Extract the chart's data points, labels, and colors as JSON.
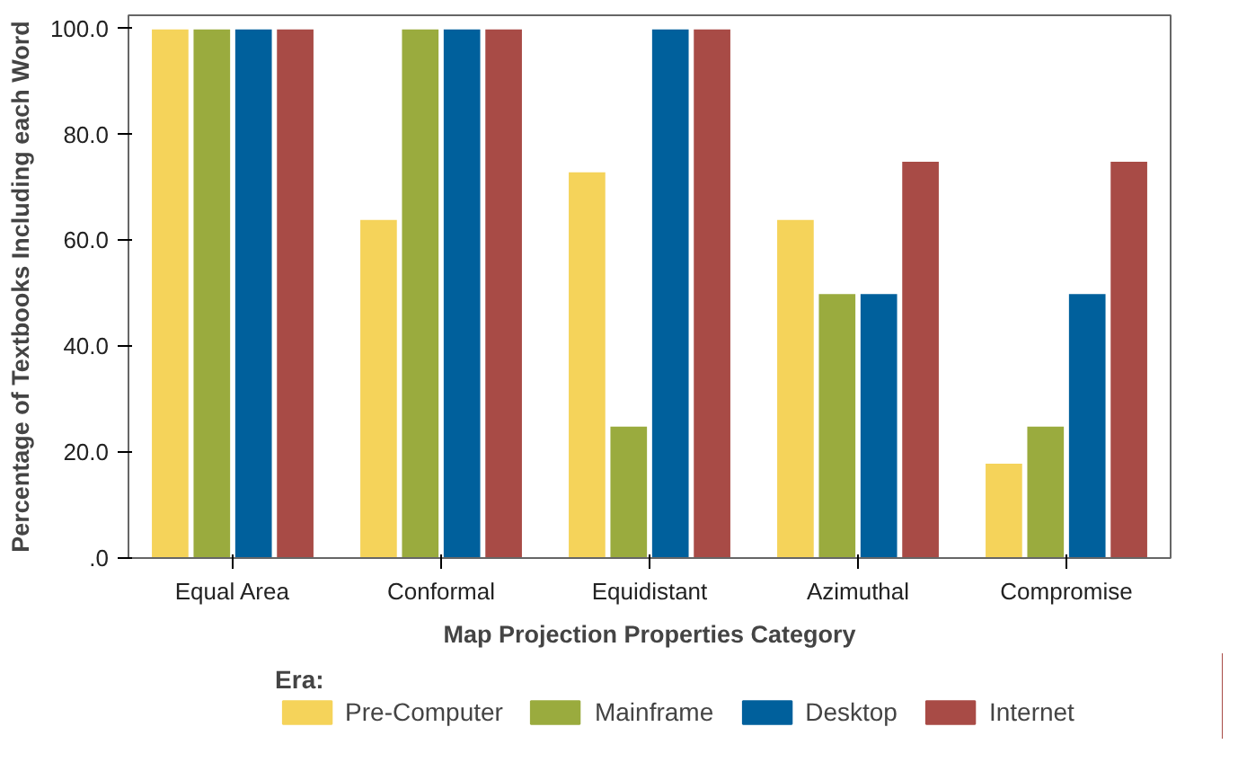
{
  "chart_data": {
    "type": "bar",
    "xlabel": "Map Projection Properties Category",
    "ylabel": "Percentage of Textbooks Including each Word",
    "legend_title": "Era:",
    "categories": [
      "Equal Area",
      "Conformal",
      "Equidistant",
      "Azimuthal",
      "Compromise"
    ],
    "series": [
      {
        "name": "Pre-Computer",
        "color": "#f5d35a",
        "values": [
          100,
          64,
          73,
          64,
          18
        ]
      },
      {
        "name": "Mainframe",
        "color": "#9aab3e",
        "values": [
          100,
          100,
          25,
          50,
          25
        ]
      },
      {
        "name": "Desktop",
        "color": "#00609c",
        "values": [
          100,
          100,
          100,
          50,
          50
        ]
      },
      {
        "name": "Internet",
        "color": "#a84b46",
        "values": [
          100,
          100,
          100,
          75,
          75
        ]
      }
    ],
    "ylim": [
      0,
      102.5
    ],
    "yticks": [
      {
        "value": 0,
        "label": ".0"
      },
      {
        "value": 20,
        "label": "20.0"
      },
      {
        "value": 40,
        "label": "40.0"
      },
      {
        "value": 60,
        "label": "60.0"
      },
      {
        "value": 80,
        "label": "80.0"
      },
      {
        "value": 100,
        "label": "100.0"
      }
    ],
    "grid": false,
    "legend": "bottom"
  }
}
